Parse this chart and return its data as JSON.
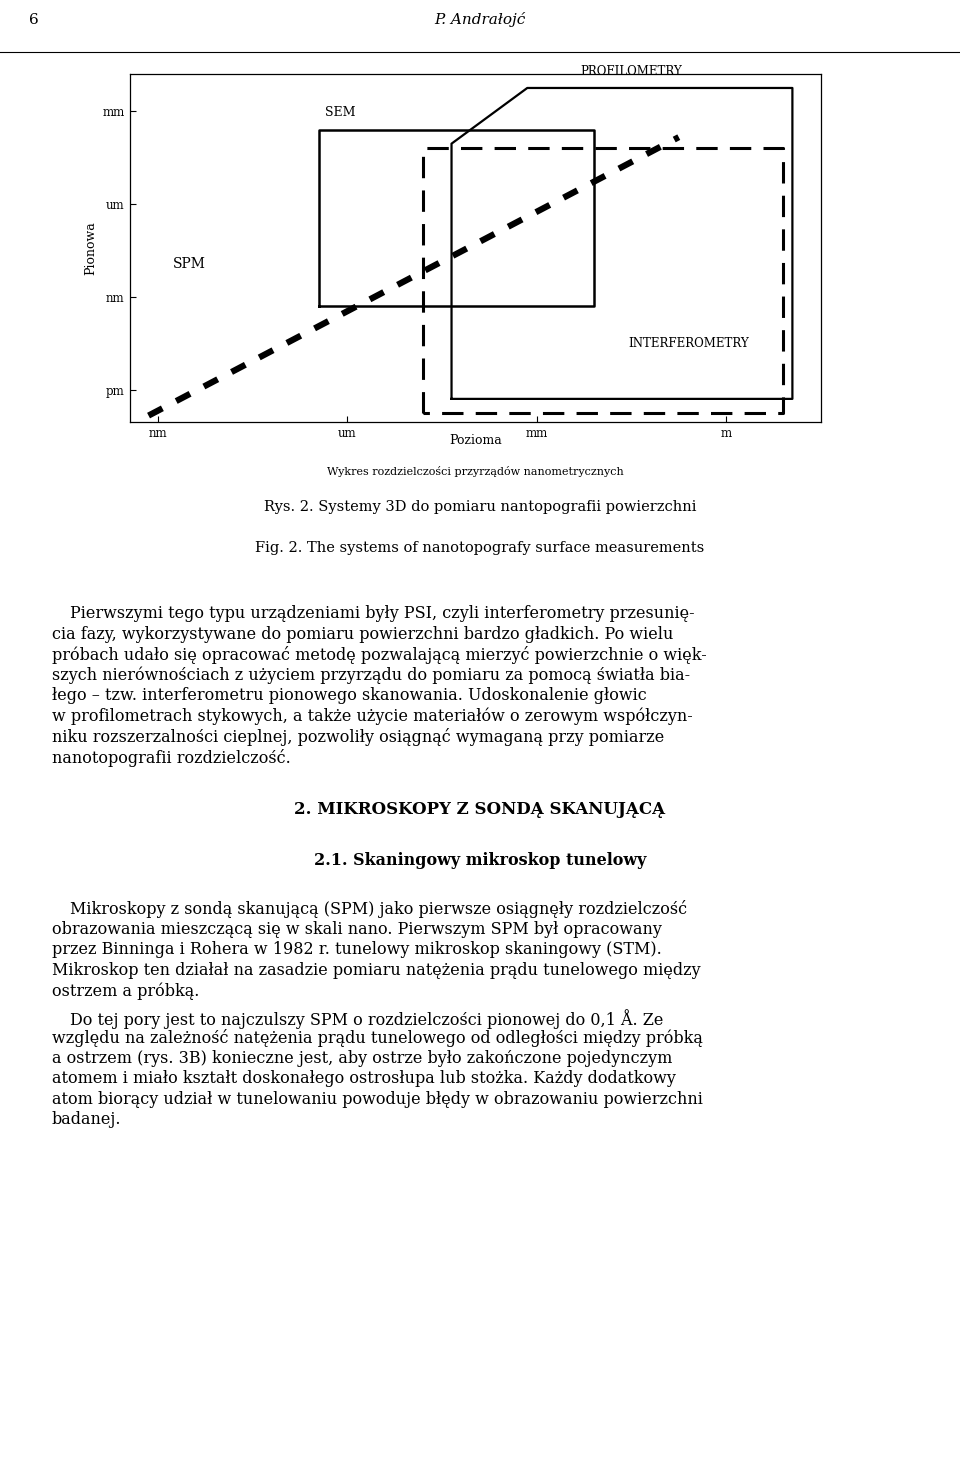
{
  "header_number": "6",
  "header_author": "P. Andrałojć",
  "fig_caption_pl": "Rys. 2. Systemy 3D do pomiaru nantopografii powierzchni",
  "fig_caption_en": "Fig. 2. The systems of nanotopografy surface measurements",
  "fig_xlabel": "Pozioma",
  "fig_xlabel2": "Wykres rozdzielczości przyrządów nanometrycznych",
  "fig_ylabel": "Pionowa",
  "fig_xticks": [
    "nm",
    "um",
    "mm",
    "m"
  ],
  "fig_yticks": [
    "pm",
    "nm",
    "um",
    "mm"
  ],
  "fig_label_profilometry": "PROFILOMETRY",
  "fig_label_sem": "SEM",
  "fig_label_spm": "SPM",
  "fig_label_interferometry": "INTERFEROMETRY",
  "section_title": "2. MIKROSKOPY Z SONDĄ SKANUJĄCĄ",
  "subsection_title": "2.1. Skaningowy mikroskop tunelowy",
  "bg_color": "#ffffff",
  "text_color": "#000000",
  "font_family": "serif",
  "fig_caption_pl2": "Rys. 2. Systemy 3D do pomiaru nantopografii powierzchni",
  "fig_caption_en2": "Fig. 2. The systems of nanotopografy surface measurements"
}
